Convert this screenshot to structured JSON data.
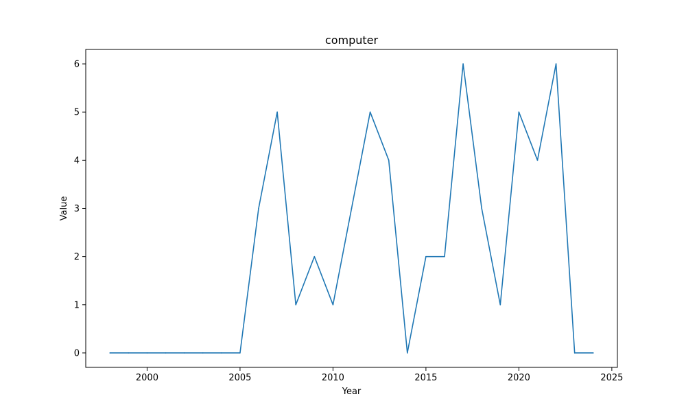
{
  "chart_data": {
    "type": "line",
    "title": "computer",
    "xlabel": "Year",
    "ylabel": "Value",
    "xlim": [
      1996.7,
      2025.3
    ],
    "ylim": [
      -0.3,
      6.3
    ],
    "xticks": [
      2000,
      2005,
      2010,
      2015,
      2020,
      2025
    ],
    "yticks": [
      0,
      1,
      2,
      3,
      4,
      5,
      6
    ],
    "grid": false,
    "legend": false,
    "line_color": "#1f77b4",
    "series": [
      {
        "x": [
          1998,
          1999,
          2000,
          2001,
          2002,
          2003,
          2004,
          2005,
          2006,
          2007,
          2008,
          2009,
          2010,
          2011,
          2012,
          2013,
          2014,
          2015,
          2016,
          2017,
          2018,
          2019,
          2020,
          2021,
          2022,
          2023,
          2024
        ],
        "values": [
          0,
          0,
          0,
          0,
          0,
          0,
          0,
          0,
          3,
          5,
          1,
          2,
          1,
          3,
          5,
          4,
          0,
          2,
          2,
          6,
          3,
          1,
          5,
          4,
          6,
          0,
          0
        ]
      }
    ]
  }
}
